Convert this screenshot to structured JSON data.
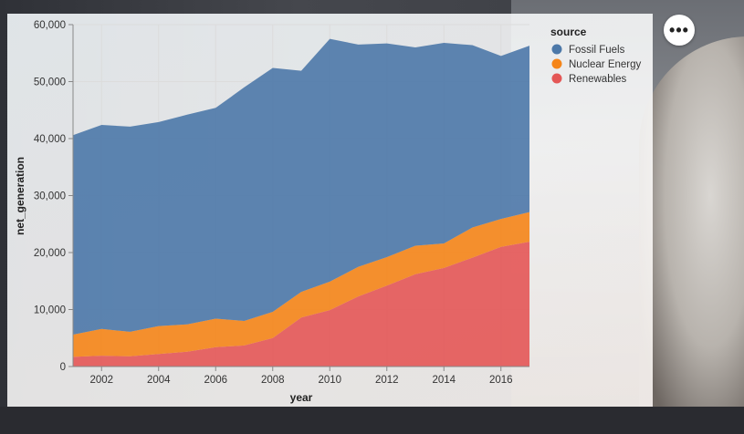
{
  "menu": {
    "icon": "more-horizontal-icon",
    "label": "•••"
  },
  "chart_data": {
    "type": "area",
    "stacked": true,
    "xlabel": "year",
    "ylabel": "net_generation",
    "xlim": [
      2001,
      2017
    ],
    "ylim": [
      0,
      60000
    ],
    "x_ticks": [
      2002,
      2004,
      2006,
      2008,
      2010,
      2012,
      2014,
      2016
    ],
    "y_ticks": [
      0,
      10000,
      20000,
      30000,
      40000,
      50000,
      60000
    ],
    "y_tick_labels": [
      "0",
      "10,000",
      "20,000",
      "30,000",
      "40,000",
      "50,000",
      "60,000"
    ],
    "grid": true,
    "legend": {
      "title": "source",
      "position": "top-right"
    },
    "x": [
      2001,
      2002,
      2003,
      2004,
      2005,
      2006,
      2007,
      2008,
      2009,
      2010,
      2011,
      2012,
      2013,
      2014,
      2015,
      2016,
      2017
    ],
    "series": [
      {
        "name": "Fossil Fuels",
        "color": "#4c78a8",
        "values": [
          35000,
          35800,
          36000,
          35800,
          36800,
          37000,
          41000,
          42800,
          38800,
          42600,
          39000,
          37500,
          34800,
          35200,
          32000,
          28600,
          29200
        ]
      },
      {
        "name": "Nuclear Energy",
        "color": "#f58518",
        "values": [
          3900,
          4700,
          4300,
          4900,
          4800,
          5000,
          4300,
          4600,
          4500,
          5000,
          5200,
          5000,
          5000,
          4300,
          5300,
          4900,
          5200
        ]
      },
      {
        "name": "Renewables",
        "color": "#e45756",
        "values": [
          1700,
          1900,
          1800,
          2200,
          2600,
          3400,
          3700,
          5000,
          8600,
          9900,
          12300,
          14200,
          16200,
          17300,
          19100,
          21000,
          21900
        ]
      }
    ]
  }
}
